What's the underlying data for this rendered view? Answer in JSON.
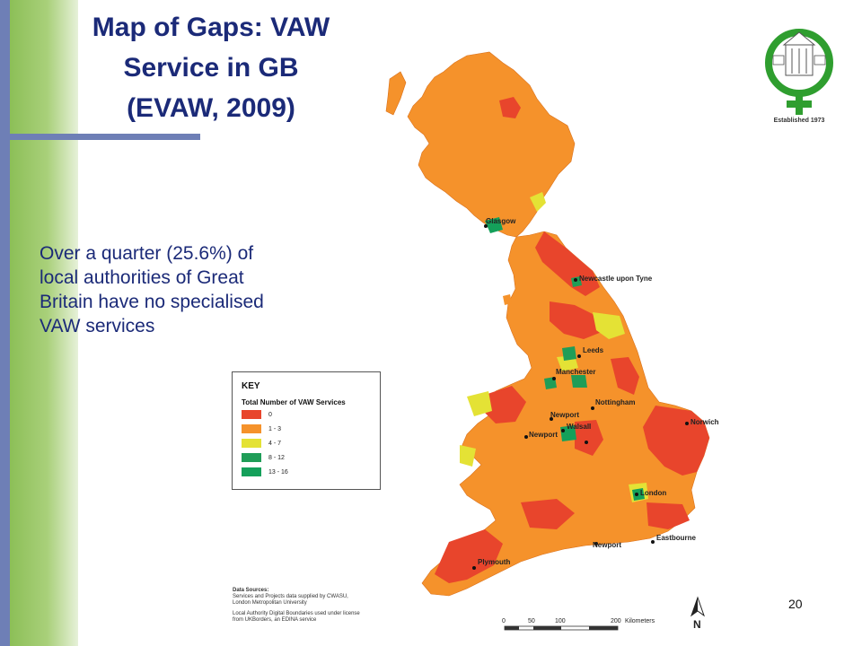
{
  "title_lines": [
    "Map of Gaps: VAW",
    "Service in GB",
    "(EVAW, 2009)"
  ],
  "body_lines": [
    "Over a quarter (25.6%) of",
    "local authorities of Great",
    "Britain have no specialised",
    "VAW services"
  ],
  "key": {
    "title": "KEY",
    "subtitle": "Total Number of VAW Services",
    "items": [
      {
        "label": "0",
        "color": "#e8452c"
      },
      {
        "label": "1 - 3",
        "color": "#f5922b"
      },
      {
        "label": "4 - 7",
        "color": "#e4e235"
      },
      {
        "label": "8 - 12",
        "color": "#1f9d57"
      },
      {
        "label": "13 - 16",
        "color": "#14a05a"
      }
    ]
  },
  "cities": [
    "Glasgow",
    "Newcastle upon Tyne",
    "Leeds",
    "Manchester",
    "Nottingham",
    "Newport",
    "Walsall",
    "Newport",
    "Norwich",
    "London",
    "Eastbourne",
    "Newport",
    "Plymouth"
  ],
  "sources": {
    "heading": "Data Sources:",
    "line1": "Services and Projects data supplied by CWASU,",
    "line2": "London Metropolitan University",
    "line3": "Local Authority Digital Boundaries used under license",
    "line4": "from UKBorders, an EDINA service"
  },
  "scale": {
    "ticks": [
      "0",
      "50",
      "100",
      "200"
    ],
    "unit": "Kilometers"
  },
  "north_label": "N",
  "logo_caption": "Established 1973",
  "page_number": "20",
  "colors": {
    "accent_blue": "#6e7fb6",
    "accent_green": "#8cbf57",
    "title_text": "#1b2a78",
    "logo_green": "#2f9e2f"
  }
}
